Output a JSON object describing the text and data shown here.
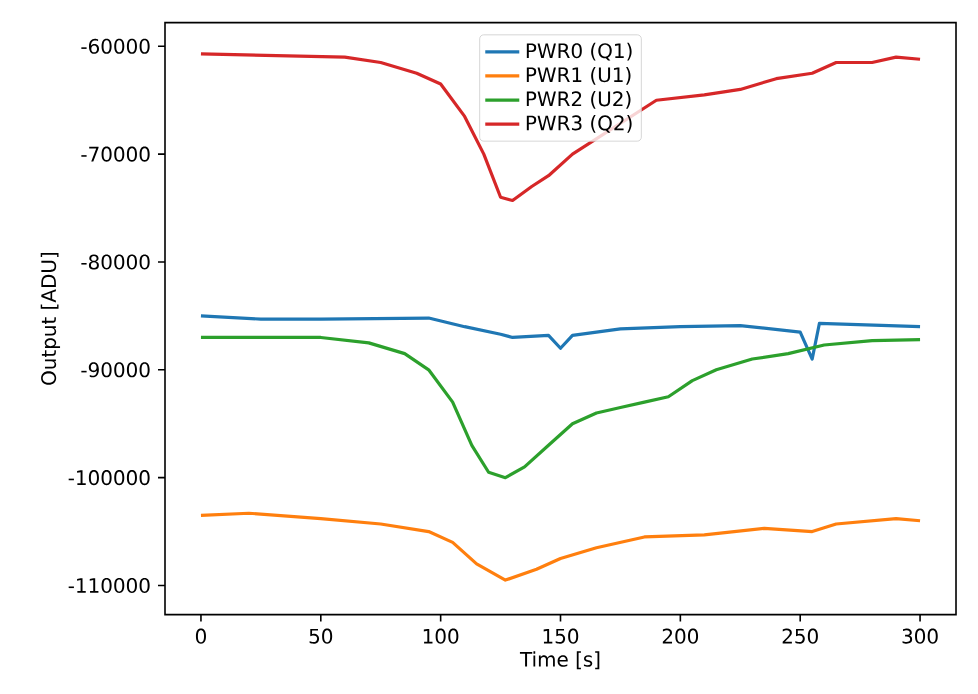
{
  "chart_data": {
    "type": "line",
    "xlabel": "Time [s]",
    "ylabel": "Output [ADU]",
    "xlim": [
      -15,
      315
    ],
    "ylim": [
      -112700,
      -57800
    ],
    "xticks": [
      0,
      50,
      100,
      150,
      200,
      250,
      300
    ],
    "yticks": [
      -110000,
      -100000,
      -90000,
      -80000,
      -70000,
      -60000
    ],
    "legend": "top",
    "grid": false,
    "marker": "none",
    "line_style": "solid",
    "series": [
      {
        "name": "PWR0 (Q1)",
        "color": "#1f77b4",
        "x": [
          0,
          25,
          50,
          95,
          110,
          125,
          130,
          145,
          150,
          155,
          175,
          200,
          225,
          250,
          255,
          258,
          300
        ],
        "values": [
          -85000,
          -85300,
          -85300,
          -85200,
          -86000,
          -86700,
          -87000,
          -86800,
          -88000,
          -86800,
          -86200,
          -86000,
          -85900,
          -86500,
          -89000,
          -85700,
          -86000
        ]
      },
      {
        "name": "PWR1 (U1)",
        "color": "#ff7f0e",
        "x": [
          0,
          20,
          50,
          75,
          95,
          105,
          115,
          127,
          140,
          150,
          165,
          185,
          210,
          235,
          255,
          265,
          290,
          300
        ],
        "values": [
          -103500,
          -103300,
          -103800,
          -104300,
          -105000,
          -106000,
          -108000,
          -109500,
          -108500,
          -107500,
          -106500,
          -105500,
          -105300,
          -104700,
          -105000,
          -104300,
          -103800,
          -104000
        ]
      },
      {
        "name": "PWR2 (U2)",
        "color": "#2ca02c",
        "x": [
          0,
          50,
          70,
          85,
          95,
          105,
          113,
          120,
          127,
          135,
          145,
          155,
          165,
          175,
          185,
          195,
          205,
          215,
          230,
          245,
          260,
          280,
          300
        ],
        "values": [
          -87000,
          -87000,
          -87500,
          -88500,
          -90000,
          -93000,
          -97000,
          -99500,
          -100000,
          -99000,
          -97000,
          -95000,
          -94000,
          -93500,
          -93000,
          -92500,
          -91000,
          -90000,
          -89000,
          -88500,
          -87700,
          -87300,
          -87200
        ]
      },
      {
        "name": "PWR3 (Q2)",
        "color": "#d62728",
        "x": [
          0,
          60,
          75,
          90,
          100,
          110,
          118,
          125,
          130,
          138,
          145,
          155,
          190,
          210,
          225,
          240,
          255,
          265,
          280,
          290,
          300
        ],
        "values": [
          -60700,
          -61000,
          -61500,
          -62500,
          -63500,
          -66500,
          -70000,
          -74000,
          -74300,
          -73000,
          -72000,
          -70000,
          -65000,
          -64500,
          -64000,
          -63000,
          -62500,
          -61500,
          -61500,
          -61000,
          -61200
        ]
      }
    ]
  }
}
